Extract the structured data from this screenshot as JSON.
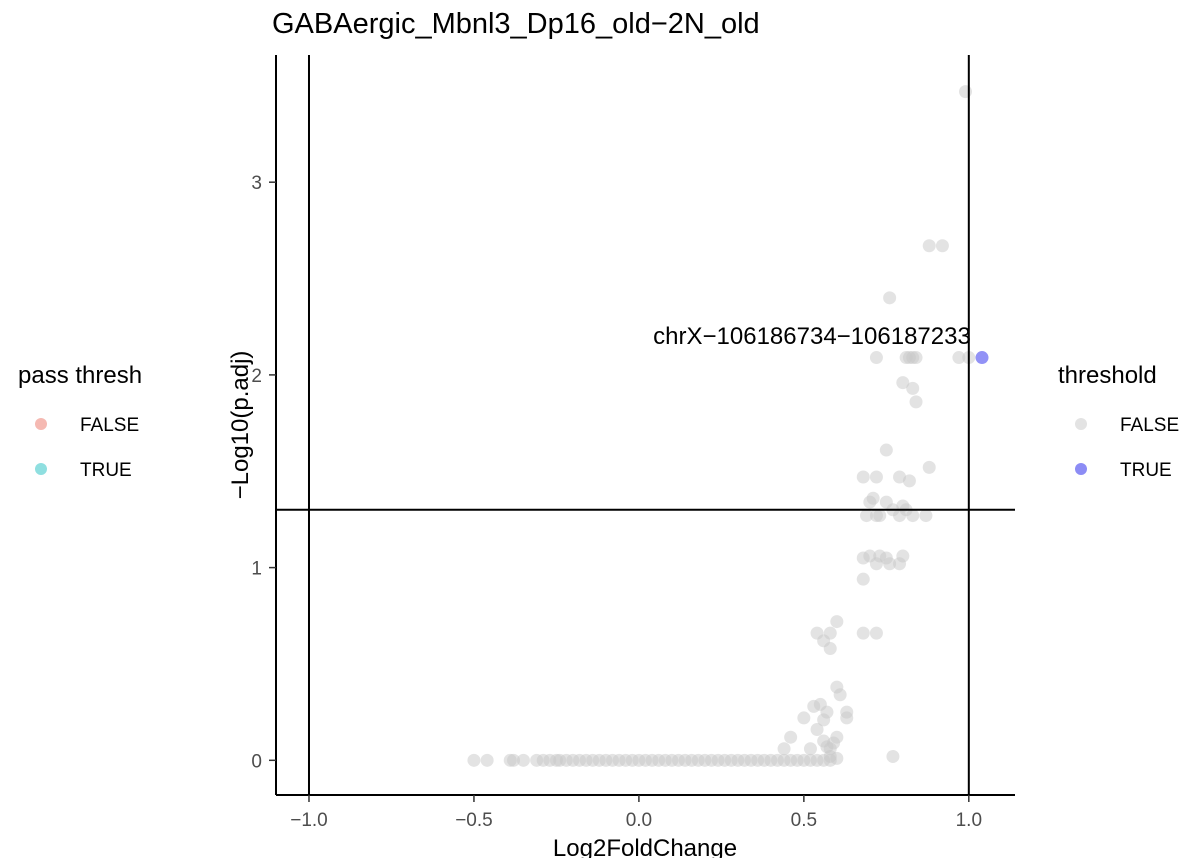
{
  "chart_data": {
    "type": "scatter",
    "title": "GABAergic_Mbnl3_Dp16_old−2N_old",
    "xlabel": "Log2FoldChange",
    "ylabel": "−Log10(p.adj)",
    "xlim": [
      -1.1,
      1.14
    ],
    "ylim": [
      -0.18,
      3.66
    ],
    "x_ticks": [
      -1.0,
      -0.5,
      0.0,
      0.5,
      1.0
    ],
    "x_tick_labels": [
      "−1.0",
      "−0.5",
      "0.0",
      "0.5",
      "1.0"
    ],
    "y_ticks": [
      0,
      1,
      2,
      3
    ],
    "y_tick_labels": [
      "0",
      "1",
      "2",
      "3"
    ],
    "vlines": [
      -1.0,
      1.0
    ],
    "hline": 1.3,
    "grid": false,
    "annotation": {
      "text": "chrX−106186734−106187233",
      "x": 1.04,
      "y": 2.09
    },
    "colors": {
      "threshold_false": "#c8c8c8",
      "threshold_true": "#8c8cf5",
      "pass_false": "#f5b9b2",
      "pass_true": "#8fdfe0",
      "ref_line": "#000000",
      "tick_text": "#4d4d4d"
    },
    "legends": [
      {
        "title": "pass thresh",
        "position": "left",
        "entries": [
          {
            "label": "FALSE",
            "color": "#f5b9b2"
          },
          {
            "label": "TRUE",
            "color": "#8fdfe0"
          }
        ]
      },
      {
        "title": "threshold",
        "position": "right",
        "entries": [
          {
            "label": "FALSE",
            "color": "#e3e3e3"
          },
          {
            "label": "TRUE",
            "color": "#8c8cf5"
          }
        ]
      }
    ],
    "series": [
      {
        "name": "TRUE",
        "color": "#8c8cf5",
        "points": [
          [
            1.04,
            2.09
          ]
        ]
      },
      {
        "name": "FALSE",
        "color": "#c8c8c8",
        "points": [
          [
            0.99,
            3.47
          ],
          [
            0.92,
            2.67
          ],
          [
            0.88,
            2.67
          ],
          [
            0.76,
            2.4
          ],
          [
            0.72,
            2.09
          ],
          [
            0.81,
            2.09
          ],
          [
            0.82,
            2.09
          ],
          [
            0.83,
            2.09
          ],
          [
            0.84,
            2.09
          ],
          [
            0.97,
            2.09
          ],
          [
            1.0,
            2.09
          ],
          [
            0.8,
            1.96
          ],
          [
            0.83,
            1.93
          ],
          [
            0.84,
            1.86
          ],
          [
            0.75,
            1.61
          ],
          [
            0.68,
            1.47
          ],
          [
            0.72,
            1.47
          ],
          [
            0.79,
            1.47
          ],
          [
            0.82,
            1.45
          ],
          [
            0.88,
            1.52
          ],
          [
            0.71,
            1.36
          ],
          [
            0.7,
            1.34
          ],
          [
            0.75,
            1.34
          ],
          [
            0.77,
            1.3
          ],
          [
            0.8,
            1.32
          ],
          [
            0.81,
            1.3
          ],
          [
            0.69,
            1.27
          ],
          [
            0.72,
            1.27
          ],
          [
            0.73,
            1.27
          ],
          [
            0.79,
            1.27
          ],
          [
            0.83,
            1.27
          ],
          [
            0.87,
            1.27
          ],
          [
            0.68,
            1.05
          ],
          [
            0.7,
            1.06
          ],
          [
            0.73,
            1.06
          ],
          [
            0.75,
            1.05
          ],
          [
            0.72,
            1.02
          ],
          [
            0.76,
            1.02
          ],
          [
            0.8,
            1.06
          ],
          [
            0.79,
            1.02
          ],
          [
            0.68,
            0.94
          ],
          [
            0.6,
            0.72
          ],
          [
            0.54,
            0.66
          ],
          [
            0.58,
            0.66
          ],
          [
            0.68,
            0.66
          ],
          [
            0.72,
            0.66
          ],
          [
            0.56,
            0.62
          ],
          [
            0.58,
            0.58
          ],
          [
            0.6,
            0.38
          ],
          [
            0.61,
            0.34
          ],
          [
            0.53,
            0.28
          ],
          [
            0.55,
            0.29
          ],
          [
            0.57,
            0.25
          ],
          [
            0.63,
            0.25
          ],
          [
            0.5,
            0.22
          ],
          [
            0.56,
            0.21
          ],
          [
            0.63,
            0.22
          ],
          [
            0.54,
            0.16
          ],
          [
            0.6,
            0.12
          ],
          [
            0.56,
            0.1
          ],
          [
            0.46,
            0.12
          ],
          [
            0.59,
            0.09
          ],
          [
            0.57,
            0.07
          ],
          [
            0.58,
            0.06
          ],
          [
            0.52,
            0.06
          ],
          [
            0.44,
            0.06
          ],
          [
            0.58,
            0.02
          ],
          [
            0.6,
            0.01
          ],
          [
            0.77,
            0.02
          ],
          [
            -0.5,
            0.0
          ],
          [
            -0.46,
            0.0
          ],
          [
            -0.39,
            0.0
          ],
          [
            -0.38,
            0.0
          ],
          [
            -0.35,
            0.0
          ],
          [
            -0.31,
            0.0
          ],
          [
            -0.29,
            0.0
          ],
          [
            -0.27,
            0.0
          ],
          [
            -0.25,
            0.0
          ],
          [
            -0.24,
            0.0
          ],
          [
            -0.22,
            0.0
          ],
          [
            -0.2,
            0.0
          ],
          [
            -0.18,
            0.0
          ],
          [
            -0.16,
            0.0
          ],
          [
            -0.14,
            0.0
          ],
          [
            -0.12,
            0.0
          ],
          [
            -0.1,
            0.0
          ],
          [
            -0.08,
            0.0
          ],
          [
            -0.06,
            0.0
          ],
          [
            -0.04,
            0.0
          ],
          [
            -0.02,
            0.0
          ],
          [
            0.0,
            0.0
          ],
          [
            0.02,
            0.0
          ],
          [
            0.04,
            0.0
          ],
          [
            0.06,
            0.0
          ],
          [
            0.08,
            0.0
          ],
          [
            0.1,
            0.0
          ],
          [
            0.12,
            0.0
          ],
          [
            0.14,
            0.0
          ],
          [
            0.16,
            0.0
          ],
          [
            0.18,
            0.0
          ],
          [
            0.2,
            0.0
          ],
          [
            0.22,
            0.0
          ],
          [
            0.24,
            0.0
          ],
          [
            0.26,
            0.0
          ],
          [
            0.28,
            0.0
          ],
          [
            0.3,
            0.0
          ],
          [
            0.32,
            0.0
          ],
          [
            0.34,
            0.0
          ],
          [
            0.36,
            0.0
          ],
          [
            0.38,
            0.0
          ],
          [
            0.4,
            0.0
          ],
          [
            0.42,
            0.0
          ],
          [
            0.44,
            0.0
          ],
          [
            0.46,
            0.0
          ],
          [
            0.48,
            0.0
          ],
          [
            0.5,
            0.0
          ],
          [
            0.52,
            0.0
          ],
          [
            0.54,
            0.0
          ],
          [
            0.56,
            0.0
          ],
          [
            0.58,
            0.0
          ]
        ]
      }
    ]
  }
}
